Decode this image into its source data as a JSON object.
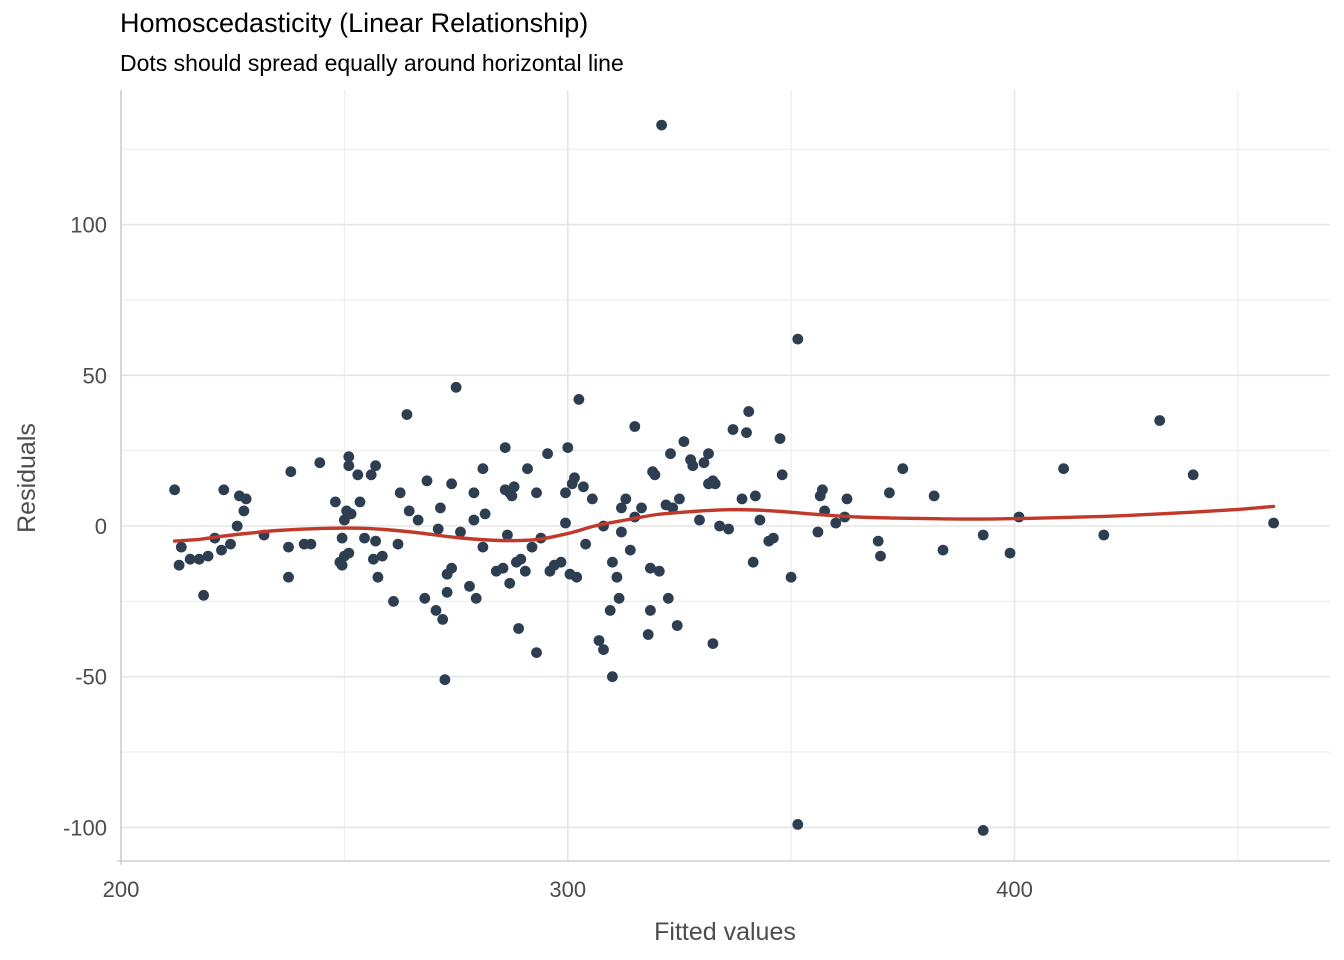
{
  "chart_data": {
    "type": "scatter",
    "title": "Homoscedasticity (Linear Relationship)",
    "subtitle": "Dots should spread equally around horizontal line",
    "xlabel": "Fitted values",
    "ylabel": "Residuals",
    "xlim": [
      200,
      470
    ],
    "ylim": [
      -113,
      143
    ],
    "x_ticks": [
      200,
      300,
      400
    ],
    "x_tick_labels": [
      "200",
      "300",
      "400"
    ],
    "y_ticks": [
      -100,
      -50,
      0,
      50,
      100
    ],
    "y_tick_labels": [
      "-100",
      "-50",
      "0",
      "50",
      "100"
    ],
    "grid": true,
    "legend": "none",
    "colors": {
      "points": "#2c3e50",
      "smooth": "#c0392b",
      "grid": "#e5e5e5"
    },
    "points": [
      [
        212,
        12
      ],
      [
        213,
        -13
      ],
      [
        213.5,
        -7
      ],
      [
        215.5,
        -11
      ],
      [
        217.5,
        -11
      ],
      [
        218.5,
        -23
      ],
      [
        219.5,
        -10
      ],
      [
        221,
        -4
      ],
      [
        222.5,
        -8
      ],
      [
        223,
        12
      ],
      [
        224.5,
        -6
      ],
      [
        226,
        0
      ],
      [
        226.5,
        10
      ],
      [
        227.5,
        5
      ],
      [
        228,
        9
      ],
      [
        232,
        -3
      ],
      [
        237.5,
        -17
      ],
      [
        237.5,
        -7
      ],
      [
        238,
        18
      ],
      [
        241,
        -6
      ],
      [
        242.5,
        -6
      ],
      [
        244.5,
        21
      ],
      [
        248,
        8
      ],
      [
        249,
        -12
      ],
      [
        249.5,
        -13
      ],
      [
        249.5,
        -4
      ],
      [
        250,
        -10
      ],
      [
        250,
        2
      ],
      [
        250.5,
        5
      ],
      [
        251,
        20
      ],
      [
        251,
        23
      ],
      [
        251,
        -9
      ],
      [
        251.5,
        4
      ],
      [
        253,
        17
      ],
      [
        253.5,
        8
      ],
      [
        254.5,
        -4
      ],
      [
        256,
        17
      ],
      [
        256.5,
        -11
      ],
      [
        257,
        20
      ],
      [
        257,
        -5
      ],
      [
        257.5,
        -17
      ],
      [
        258.5,
        -10
      ],
      [
        261,
        -25
      ],
      [
        262,
        -6
      ],
      [
        262.5,
        11
      ],
      [
        264,
        37
      ],
      [
        264.5,
        5
      ],
      [
        266.5,
        2
      ],
      [
        268,
        -24
      ],
      [
        268.5,
        15
      ],
      [
        270.5,
        -28
      ],
      [
        271,
        -1
      ],
      [
        271.5,
        6
      ],
      [
        272,
        -31
      ],
      [
        272.5,
        -51
      ],
      [
        273,
        -16
      ],
      [
        273,
        -22
      ],
      [
        274,
        -14
      ],
      [
        274,
        14
      ],
      [
        275,
        46
      ],
      [
        276,
        -2
      ],
      [
        278,
        -20
      ],
      [
        279,
        2
      ],
      [
        279,
        11
      ],
      [
        279.5,
        -24
      ],
      [
        281,
        -7
      ],
      [
        281,
        19
      ],
      [
        281.5,
        4
      ],
      [
        284,
        -15
      ],
      [
        285.5,
        -14
      ],
      [
        286,
        12
      ],
      [
        286,
        26
      ],
      [
        286.5,
        -3
      ],
      [
        287,
        -19
      ],
      [
        287,
        11
      ],
      [
        287.5,
        10
      ],
      [
        288,
        13
      ],
      [
        288.5,
        -12
      ],
      [
        289,
        -34
      ],
      [
        289.5,
        -11
      ],
      [
        290.5,
        -15
      ],
      [
        291,
        19
      ],
      [
        292,
        -7
      ],
      [
        293,
        -42
      ],
      [
        293,
        11
      ],
      [
        294,
        -4
      ],
      [
        295.5,
        24
      ],
      [
        296,
        -15
      ],
      [
        297,
        -13
      ],
      [
        298.5,
        -12
      ],
      [
        299.5,
        1
      ],
      [
        299.5,
        11
      ],
      [
        300,
        26
      ],
      [
        300.5,
        -16
      ],
      [
        301,
        14
      ],
      [
        301.5,
        16
      ],
      [
        302,
        -17
      ],
      [
        302.5,
        42
      ],
      [
        303.5,
        13
      ],
      [
        304,
        -6
      ],
      [
        305.5,
        9
      ],
      [
        307,
        -38
      ],
      [
        308,
        -41
      ],
      [
        308,
        0
      ],
      [
        309.5,
        -28
      ],
      [
        310,
        -12
      ],
      [
        310,
        -50
      ],
      [
        311,
        -17
      ],
      [
        311.5,
        -24
      ],
      [
        312,
        -2
      ],
      [
        312,
        6
      ],
      [
        313,
        9
      ],
      [
        314,
        -8
      ],
      [
        315,
        33
      ],
      [
        315,
        3
      ],
      [
        316.5,
        6
      ],
      [
        318,
        -36
      ],
      [
        318.5,
        -14
      ],
      [
        318.5,
        -28
      ],
      [
        319,
        18
      ],
      [
        319.5,
        17
      ],
      [
        320.5,
        -15
      ],
      [
        321,
        133
      ],
      [
        322,
        7
      ],
      [
        322.5,
        -24
      ],
      [
        323,
        24
      ],
      [
        323.5,
        6
      ],
      [
        324.5,
        -33
      ],
      [
        325,
        9
      ],
      [
        326,
        28
      ],
      [
        327.5,
        22
      ],
      [
        328,
        20
      ],
      [
        329.5,
        2
      ],
      [
        330.5,
        21
      ],
      [
        331.5,
        14
      ],
      [
        331.5,
        24
      ],
      [
        332.5,
        -39
      ],
      [
        332.5,
        15
      ],
      [
        333,
        14
      ],
      [
        334,
        0
      ],
      [
        336,
        -1
      ],
      [
        337,
        32
      ],
      [
        339,
        9
      ],
      [
        340,
        31
      ],
      [
        340.5,
        38
      ],
      [
        341.5,
        -12
      ],
      [
        342,
        10
      ],
      [
        343,
        2
      ],
      [
        345,
        -5
      ],
      [
        346,
        -4
      ],
      [
        347.5,
        29
      ],
      [
        348,
        17
      ],
      [
        350,
        -17
      ],
      [
        351.5,
        62
      ],
      [
        351.5,
        -99
      ],
      [
        356,
        -2
      ],
      [
        356.5,
        10
      ],
      [
        357,
        12
      ],
      [
        357.5,
        5
      ],
      [
        360,
        1
      ],
      [
        362,
        3
      ],
      [
        362.5,
        9
      ],
      [
        369.5,
        -5
      ],
      [
        370,
        -10
      ],
      [
        372,
        11
      ],
      [
        375,
        19
      ],
      [
        382,
        10
      ],
      [
        384,
        -8
      ],
      [
        393,
        -3
      ],
      [
        393,
        -101
      ],
      [
        399,
        -9
      ],
      [
        401,
        3
      ],
      [
        411,
        19
      ],
      [
        420,
        -3
      ],
      [
        432.5,
        35
      ],
      [
        440,
        17
      ],
      [
        458,
        1
      ]
    ],
    "smooth": {
      "x": [
        212,
        217,
        222,
        228,
        235,
        245,
        255,
        265,
        275,
        285,
        293,
        300,
        306,
        313,
        320,
        328,
        336,
        342,
        348,
        356,
        365,
        375,
        390,
        405,
        420,
        435,
        450,
        458
      ],
      "y": [
        -5.0,
        -4.5,
        -3.5,
        -2.5,
        -1.5,
        -0.8,
        -0.8,
        -2.0,
        -3.8,
        -4.8,
        -4.5,
        -2.5,
        0.0,
        2.0,
        3.8,
        4.8,
        5.4,
        5.3,
        4.8,
        3.8,
        3.0,
        2.6,
        2.3,
        2.6,
        3.2,
        4.2,
        5.5,
        6.5
      ]
    }
  }
}
